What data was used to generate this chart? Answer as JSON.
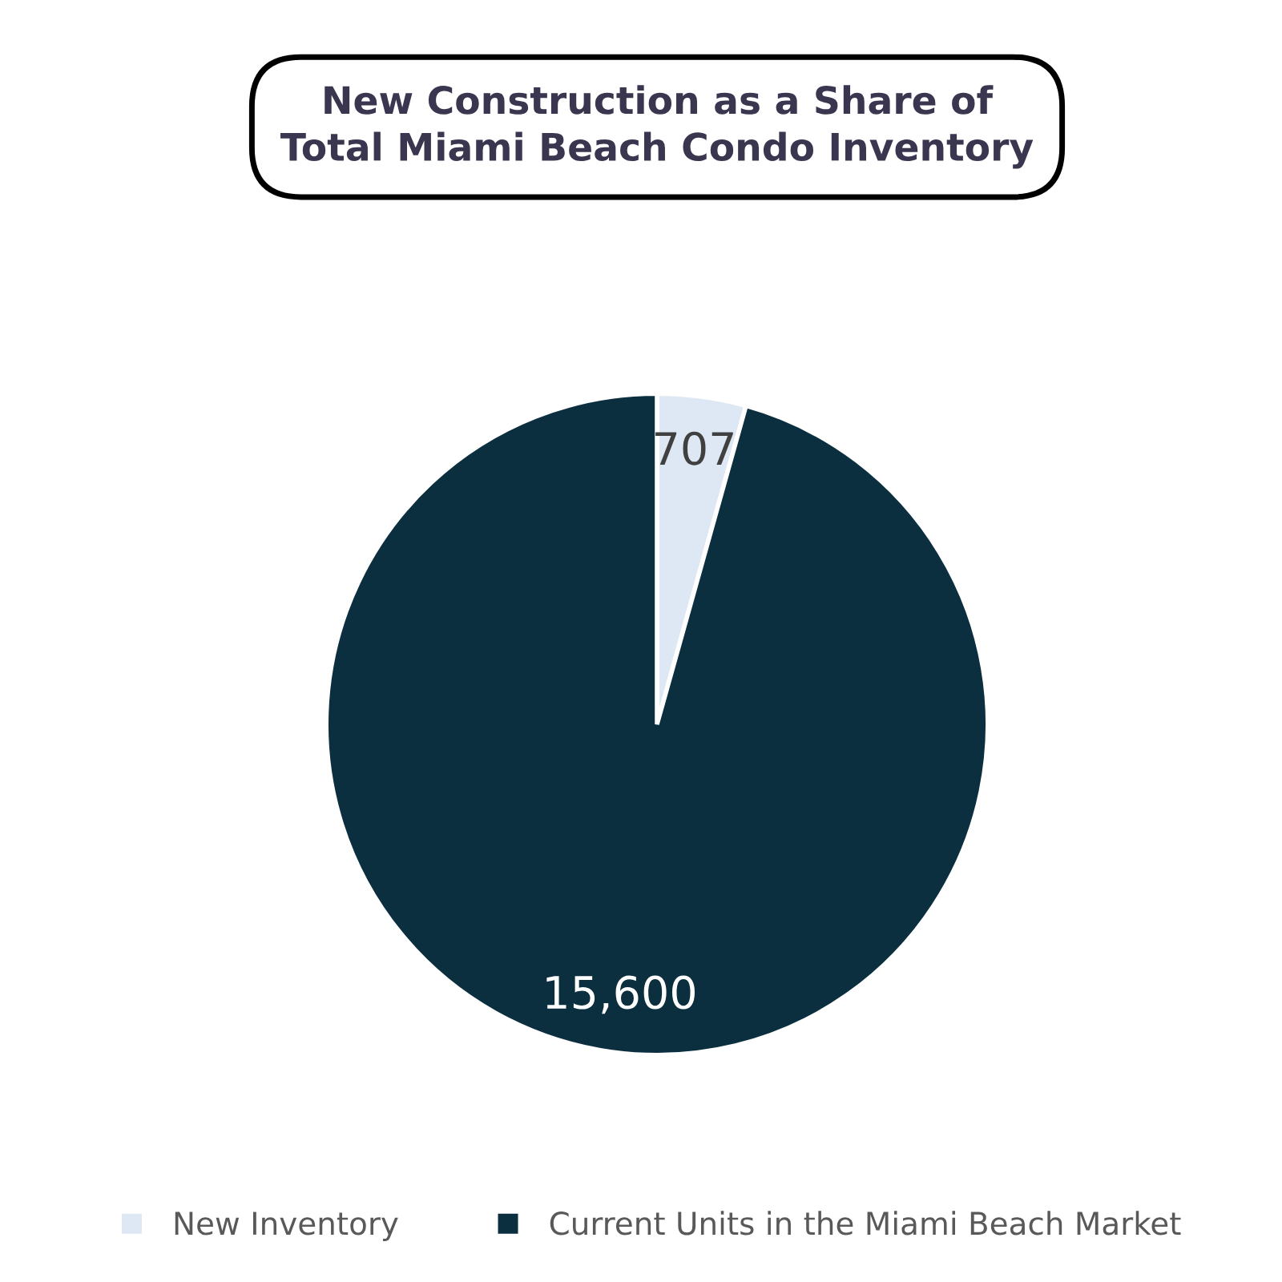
{
  "chart_data": {
    "type": "pie",
    "title": "New Construction as a Share of\nTotal Miami Beach Condo Inventory",
    "categories": [
      "New Inventory",
      "Current Units in the Miami Beach Market"
    ],
    "values": [
      707,
      15600
    ],
    "colors": [
      "#dde8f4",
      "#0c2f40"
    ],
    "value_labels": [
      "707",
      "15,600"
    ],
    "legend": "bottom"
  }
}
